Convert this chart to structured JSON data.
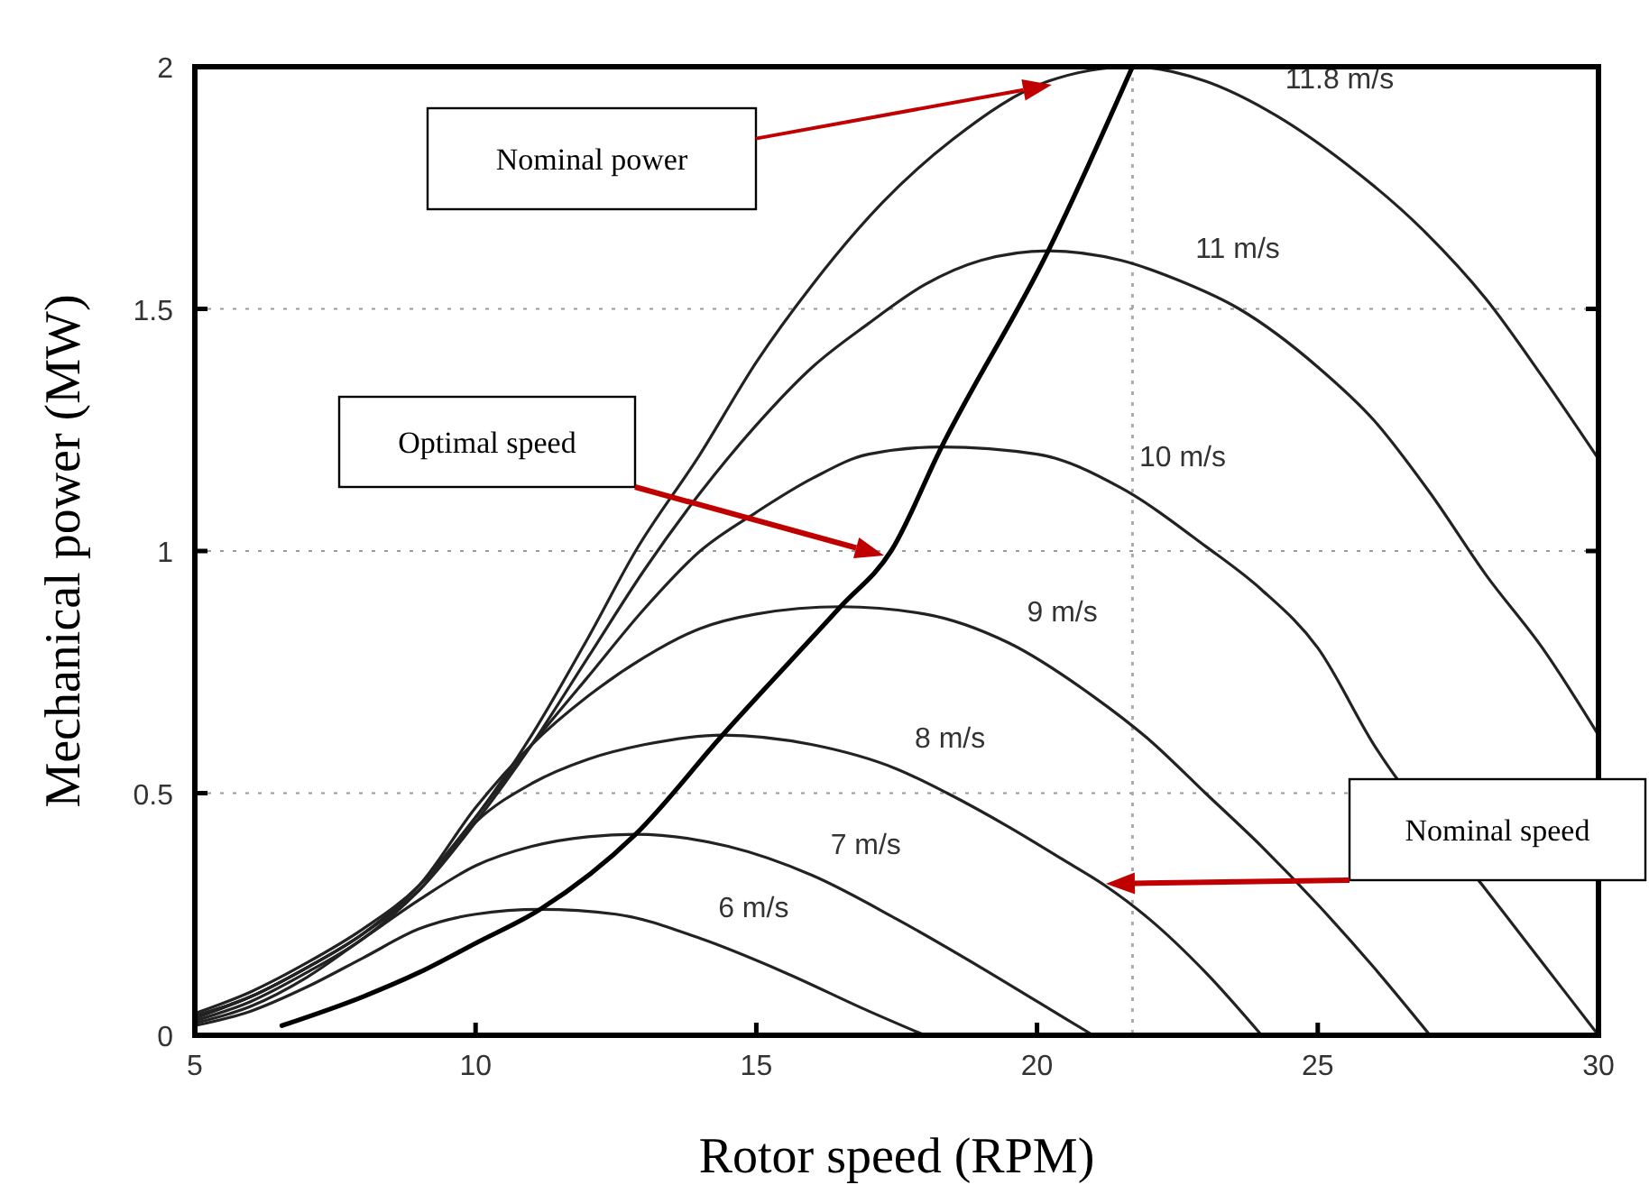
{
  "chart_data": {
    "type": "line",
    "xlabel": "Rotor speed (RPM)",
    "ylabel": "Mechanical power (MW)",
    "xlim": [
      5,
      30
    ],
    "xticks": [
      5,
      10,
      15,
      20,
      25,
      30
    ],
    "ylim": [
      0,
      2
    ],
    "yticks": [
      0,
      0.5,
      1,
      1.5,
      2
    ],
    "grid": "y",
    "legend": false,
    "marker": "none",
    "line_style": "solid",
    "ref_lines": [
      {
        "axis": "x",
        "value": 21.7,
        "line_style": "dotted",
        "color": "#aaaaaa"
      }
    ],
    "annotations": [
      "Nominal power",
      "Optimal speed",
      "Nominal speed"
    ],
    "series": [
      {
        "name": "6 m/s",
        "color": "#222222",
        "x": [
          5,
          6,
          7,
          8,
          9,
          10,
          11.15,
          12.5,
          14,
          15.5,
          17,
          18
        ],
        "values": [
          0.02,
          0.05,
          0.1,
          0.16,
          0.22,
          0.25,
          0.26,
          0.25,
          0.2,
          0.13,
          0.05,
          0
        ]
      },
      {
        "name": "7 m/s",
        "color": "#222222",
        "x": [
          5,
          6,
          7,
          8,
          9,
          10,
          11,
          12,
          12.85,
          14.5,
          16,
          17.5,
          19,
          20,
          21
        ],
        "values": [
          0.025,
          0.06,
          0.12,
          0.2,
          0.28,
          0.35,
          0.39,
          0.41,
          0.415,
          0.39,
          0.33,
          0.24,
          0.14,
          0.07,
          0
        ]
      },
      {
        "name": "8 m/s",
        "color": "#222222",
        "x": [
          5,
          6,
          7,
          8,
          9,
          10,
          11,
          12,
          13,
          14.4,
          16,
          17.5,
          18.4,
          19.5,
          20.5,
          21.2,
          22,
          23,
          24
        ],
        "values": [
          0.03,
          0.07,
          0.13,
          0.2,
          0.3,
          0.44,
          0.52,
          0.57,
          0.6,
          0.62,
          0.6,
          0.55,
          0.5,
          0.43,
          0.36,
          0.31,
          0.24,
          0.13,
          0
        ]
      },
      {
        "name": "9 m/s",
        "color": "#222222",
        "x": [
          5,
          6,
          7,
          8,
          9,
          10,
          11,
          12,
          13,
          14,
          15,
          16.5,
          18,
          19.5,
          21,
          22,
          23,
          24,
          25,
          26,
          27
        ],
        "values": [
          0.035,
          0.08,
          0.14,
          0.21,
          0.31,
          0.47,
          0.6,
          0.7,
          0.78,
          0.84,
          0.87,
          0.885,
          0.87,
          0.81,
          0.7,
          0.61,
          0.5,
          0.39,
          0.27,
          0.14,
          0
        ]
      },
      {
        "name": "10 m/s",
        "color": "#222222",
        "x": [
          5,
          6,
          7,
          8,
          9,
          10,
          11,
          12,
          13,
          14,
          15,
          16,
          17,
          18.3,
          20,
          21.5,
          23,
          24,
          25,
          26,
          28,
          29,
          30
        ],
        "values": [
          0.04,
          0.08,
          0.14,
          0.21,
          0.31,
          0.45,
          0.6,
          0.74,
          0.88,
          1.0,
          1.08,
          1.15,
          1.2,
          1.215,
          1.2,
          1.13,
          1.01,
          0.92,
          0.8,
          0.6,
          0.3,
          0.15,
          0
        ]
      },
      {
        "name": "11 m/s",
        "color": "#222222",
        "x": [
          5,
          6,
          7,
          8,
          9,
          10,
          11,
          12,
          13,
          14,
          15,
          16,
          17,
          18,
          19,
          20.2,
          21.5,
          22.5,
          23.6,
          25,
          26,
          27,
          28,
          29,
          30
        ],
        "values": [
          0.04,
          0.08,
          0.14,
          0.21,
          0.3,
          0.44,
          0.6,
          0.78,
          0.96,
          1.12,
          1.26,
          1.38,
          1.47,
          1.55,
          1.6,
          1.62,
          1.6,
          1.56,
          1.5,
          1.38,
          1.27,
          1.12,
          0.95,
          0.8,
          0.62
        ]
      },
      {
        "name": "11.8 m/s",
        "color": "#222222",
        "x": [
          5,
          6,
          7,
          8,
          9,
          10,
          11,
          12,
          12.85,
          14,
          15,
          16,
          17.25,
          18.5,
          20.2,
          21.7,
          23,
          24.1,
          25.5,
          26.9,
          28,
          29,
          30
        ],
        "values": [
          0.045,
          0.09,
          0.15,
          0.22,
          0.31,
          0.45,
          0.62,
          0.82,
          1.0,
          1.2,
          1.39,
          1.55,
          1.72,
          1.85,
          1.97,
          2.0,
          1.97,
          1.91,
          1.8,
          1.66,
          1.52,
          1.36,
          1.19
        ]
      },
      {
        "color": "#000000",
        "x": [
          6.55,
          8,
          9,
          10,
          11.15,
          12.85,
          14.4,
          16.5,
          17.4,
          18.3,
          20.2,
          21.7
        ],
        "values": [
          0.02,
          0.08,
          0.13,
          0.19,
          0.26,
          0.415,
          0.62,
          0.885,
          1.0,
          1.215,
          1.62,
          2.0
        ]
      }
    ]
  }
}
